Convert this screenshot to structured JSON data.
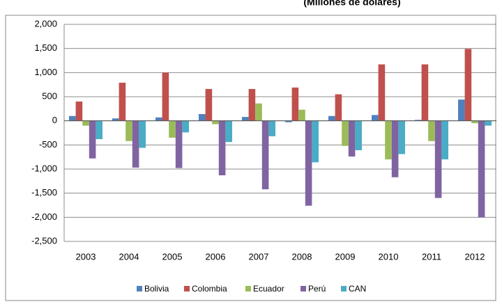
{
  "chart_data": {
    "type": "bar",
    "title": "(Millones de dólares)",
    "categories": [
      "2003",
      "2004",
      "2005",
      "2006",
      "2007",
      "2008",
      "2009",
      "2010",
      "2011",
      "2012"
    ],
    "series": [
      {
        "name": "Bolivia",
        "color": "#4F81BD",
        "values": [
          100,
          50,
          70,
          140,
          80,
          -30,
          100,
          120,
          20,
          440
        ]
      },
      {
        "name": "Colombia",
        "color": "#C0504D",
        "values": [
          400,
          790,
          1000,
          660,
          660,
          690,
          550,
          1170,
          1170,
          1490
        ]
      },
      {
        "name": "Ecuador",
        "color": "#9BBB59",
        "values": [
          -100,
          -420,
          -350,
          -70,
          360,
          230,
          -520,
          -800,
          -420,
          -50
        ]
      },
      {
        "name": "Perú",
        "color": "#8064A2",
        "values": [
          -780,
          -970,
          -980,
          -1130,
          -1420,
          -1760,
          -740,
          -1170,
          -1600,
          -2000
        ]
      },
      {
        "name": "CAN",
        "color": "#4BACC6",
        "values": [
          -380,
          -560,
          -240,
          -440,
          -320,
          -860,
          -610,
          -690,
          -800,
          -100
        ]
      }
    ],
    "ylim": [
      -2500,
      2000
    ],
    "yticks": [
      {
        "value": -2500,
        "label": "-2,500"
      },
      {
        "value": -2000,
        "label": "-2,000"
      },
      {
        "value": -1500,
        "label": "-1,500"
      },
      {
        "value": -1000,
        "label": "-1,000"
      },
      -500,
      0,
      500,
      {
        "value": 1000,
        "label": "1,000"
      },
      {
        "value": 1500,
        "label": "1,500"
      },
      {
        "value": 2000,
        "label": "2,000"
      }
    ],
    "grid": true,
    "legend": "bottom"
  }
}
